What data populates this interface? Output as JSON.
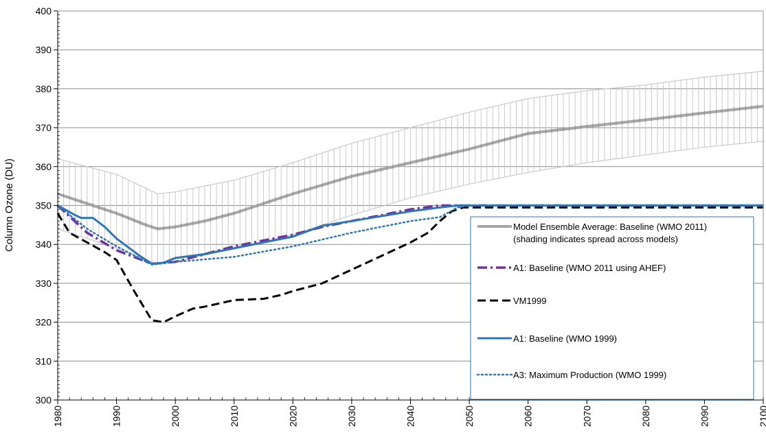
{
  "chart_data": {
    "type": "line",
    "title": "",
    "xlabel": "",
    "ylabel": "Column Ozone (DU)",
    "xlim": [
      1980,
      2100
    ],
    "ylim": [
      300,
      400
    ],
    "x_ticks": [
      "1980",
      "1990",
      "2000",
      "2010",
      "2020",
      "2030",
      "2040",
      "2050",
      "2060",
      "2070",
      "2080",
      "2090",
      "2100"
    ],
    "y_ticks": [
      "300",
      "310",
      "320",
      "330",
      "340",
      "350",
      "360",
      "370",
      "380",
      "390",
      "400"
    ],
    "grid": "horizontal",
    "legend_position": "bottom-right",
    "shading": {
      "name": "Model ensemble spread",
      "upper": [
        [
          1980,
          362
        ],
        [
          1990,
          358
        ],
        [
          1997,
          353
        ],
        [
          2000,
          353.5
        ],
        [
          2010,
          356.5
        ],
        [
          2020,
          361
        ],
        [
          2030,
          366
        ],
        [
          2040,
          370
        ],
        [
          2050,
          374
        ],
        [
          2060,
          377.5
        ],
        [
          2070,
          379.5
        ],
        [
          2080,
          381
        ],
        [
          2090,
          383
        ],
        [
          2100,
          384.5
        ]
      ],
      "lower": [
        [
          1980,
          344
        ],
        [
          1990,
          339
        ],
        [
          1997,
          335
        ],
        [
          2000,
          335.5
        ],
        [
          2010,
          339
        ],
        [
          2020,
          342.5
        ],
        [
          2030,
          347.5
        ],
        [
          2040,
          352
        ],
        [
          2050,
          355.5
        ],
        [
          2060,
          358.5
        ],
        [
          2070,
          361
        ],
        [
          2080,
          363
        ],
        [
          2090,
          365
        ],
        [
          2100,
          366.5
        ]
      ]
    },
    "series": [
      {
        "name": "Model Ensemble Average: Baseline (WMO 2011)",
        "name_line2": "(shading indicates spread across models)",
        "color": "#a6a6a6",
        "style": "solid-thick",
        "points": [
          [
            1980,
            353
          ],
          [
            1985,
            350.5
          ],
          [
            1990,
            348
          ],
          [
            1995,
            345
          ],
          [
            1997,
            344
          ],
          [
            2000,
            344.5
          ],
          [
            2005,
            346
          ],
          [
            2010,
            348
          ],
          [
            2020,
            353
          ],
          [
            2030,
            357.5
          ],
          [
            2040,
            361
          ],
          [
            2050,
            364.5
          ],
          [
            2060,
            368.5
          ],
          [
            2070,
            370.3
          ],
          [
            2080,
            372
          ],
          [
            2090,
            373.8
          ],
          [
            2100,
            375.5
          ]
        ]
      },
      {
        "name": "A1: Baseline (WMO 2011 using AHEF)",
        "color": "#7030a0",
        "style": "dash-dot",
        "points": [
          [
            1980,
            350
          ],
          [
            1985,
            343
          ],
          [
            1990,
            338.5
          ],
          [
            1996,
            335
          ],
          [
            2000,
            335.5
          ],
          [
            2005,
            337.5
          ],
          [
            2010,
            339.5
          ],
          [
            2020,
            342.5
          ],
          [
            2025,
            344.5
          ],
          [
            2030,
            346
          ],
          [
            2040,
            349
          ],
          [
            2045,
            350
          ],
          [
            2050,
            350
          ],
          [
            2100,
            350
          ]
        ]
      },
      {
        "name": "VM1999",
        "color": "#000000",
        "style": "dashed",
        "points": [
          [
            1980,
            348
          ],
          [
            1982,
            343
          ],
          [
            1985,
            340.5
          ],
          [
            1988,
            338
          ],
          [
            1990,
            336
          ],
          [
            1993,
            328
          ],
          [
            1996,
            320.5
          ],
          [
            1998,
            320
          ],
          [
            2000,
            321.5
          ],
          [
            2003,
            323.5
          ],
          [
            2005,
            324
          ],
          [
            2008,
            325
          ],
          [
            2010,
            325.7
          ],
          [
            2015,
            326
          ],
          [
            2018,
            327
          ],
          [
            2020,
            328
          ],
          [
            2025,
            330
          ],
          [
            2030,
            333.5
          ],
          [
            2035,
            337
          ],
          [
            2040,
            340.5
          ],
          [
            2043,
            343
          ],
          [
            2045,
            346
          ],
          [
            2047,
            348.5
          ],
          [
            2049,
            349.5
          ],
          [
            2050,
            349.5
          ],
          [
            2100,
            349.5
          ]
        ]
      },
      {
        "name": "A1: Baseline (WMO 1999)",
        "color": "#2e75b6",
        "style": "solid",
        "points": [
          [
            1980,
            350
          ],
          [
            1983,
            347.5
          ],
          [
            1984,
            346.8
          ],
          [
            1986,
            346.8
          ],
          [
            1988,
            344.5
          ],
          [
            1990,
            341.5
          ],
          [
            1994,
            337
          ],
          [
            1996,
            335
          ],
          [
            1998,
            335.3
          ],
          [
            2000,
            336.5
          ],
          [
            2005,
            337.5
          ],
          [
            2010,
            339
          ],
          [
            2020,
            342
          ],
          [
            2025,
            344.8
          ],
          [
            2030,
            346
          ],
          [
            2040,
            348.5
          ],
          [
            2045,
            349.5
          ],
          [
            2048,
            350
          ],
          [
            2050,
            350
          ],
          [
            2100,
            350
          ]
        ]
      },
      {
        "name": "A3: Maximum Production (WMO 1999)",
        "color": "#2e75b6",
        "style": "dotted",
        "points": [
          [
            1980,
            350
          ],
          [
            1985,
            344
          ],
          [
            1990,
            339.5
          ],
          [
            1996,
            334.8
          ],
          [
            2000,
            335.5
          ],
          [
            2010,
            336.8
          ],
          [
            2020,
            339.5
          ],
          [
            2030,
            343
          ],
          [
            2040,
            346
          ],
          [
            2045,
            347
          ],
          [
            2048,
            349.5
          ],
          [
            2050,
            350
          ],
          [
            2100,
            350
          ]
        ]
      }
    ]
  }
}
